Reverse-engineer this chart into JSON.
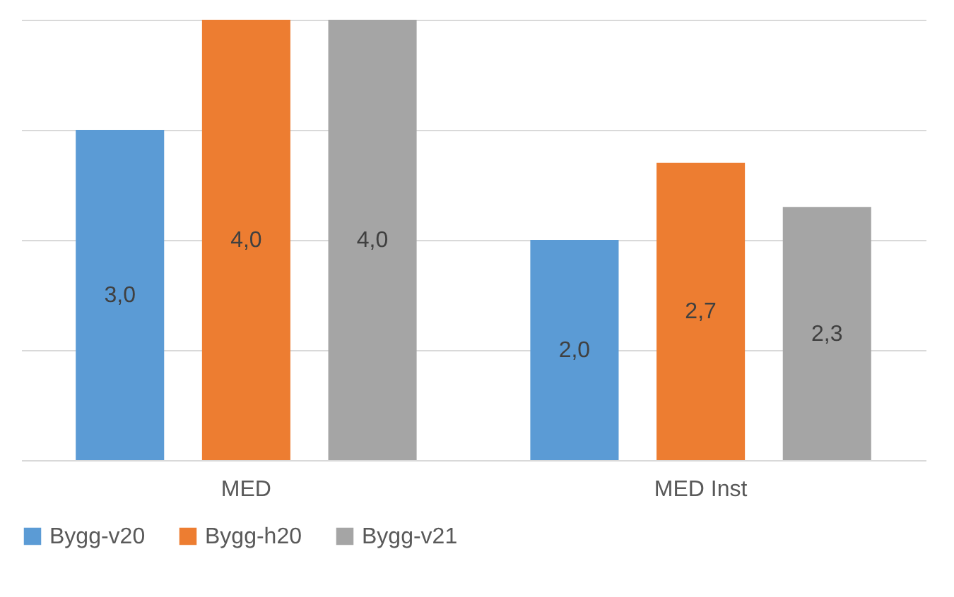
{
  "chart_data": {
    "type": "bar",
    "categories": [
      "MED",
      "MED Inst"
    ],
    "series": [
      {
        "name": "Bygg-v20",
        "color": "#5b9bd5",
        "values": [
          3.0,
          2.0
        ],
        "value_labels": [
          "3,0",
          "2,0"
        ]
      },
      {
        "name": "Bygg-h20",
        "color": "#ed7d31",
        "values": [
          4.0,
          2.7
        ],
        "value_labels": [
          "4,0",
          "2,7"
        ]
      },
      {
        "name": "Bygg-v21",
        "color": "#a5a5a5",
        "values": [
          4.0,
          2.3
        ],
        "value_labels": [
          "4,0",
          "2,3"
        ]
      }
    ],
    "ylim": [
      0,
      4
    ],
    "yticks": [
      {
        "value": 0,
        "label": null
      },
      {
        "value": 1,
        "label": null
      },
      {
        "value": 2,
        "label": null
      },
      {
        "value": 3,
        "label": null
      },
      {
        "value": 4,
        "label": null
      }
    ],
    "tick_labels": "x",
    "grid": "y",
    "legend": "bottom"
  }
}
